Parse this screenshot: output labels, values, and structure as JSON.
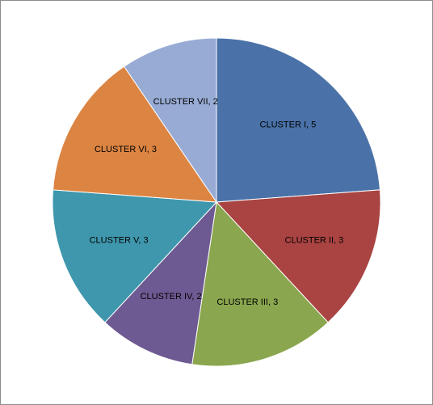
{
  "chart_data": {
    "type": "pie",
    "title": "",
    "legend": "none",
    "start_angle_deg": 0,
    "direction": "clockwise",
    "slices": [
      {
        "label": "CLUSTER  I, 5",
        "name": "CLUSTER  I",
        "value": 5,
        "color": "#4a72a8"
      },
      {
        "label": "CLUSTER  II, 3",
        "name": "CLUSTER  II",
        "value": 3,
        "color": "#a94442"
      },
      {
        "label": "CLUSTER  III, 3",
        "name": "CLUSTER  III",
        "value": 3,
        "color": "#8aa64e"
      },
      {
        "label": "CLUSTER  IV, 2",
        "name": "CLUSTER  IV",
        "value": 2,
        "color": "#6e5a92"
      },
      {
        "label": "CLUSTER  V, 3",
        "name": "CLUSTER  V",
        "value": 3,
        "color": "#3f97ad"
      },
      {
        "label": "CLUSTER  VI, 3",
        "name": "CLUSTER  VI",
        "value": 3,
        "color": "#dc8442"
      },
      {
        "label": "CLUSTER  VII, 2",
        "name": "CLUSTER  VII",
        "value": 2,
        "color": "#97abd4"
      }
    ]
  }
}
